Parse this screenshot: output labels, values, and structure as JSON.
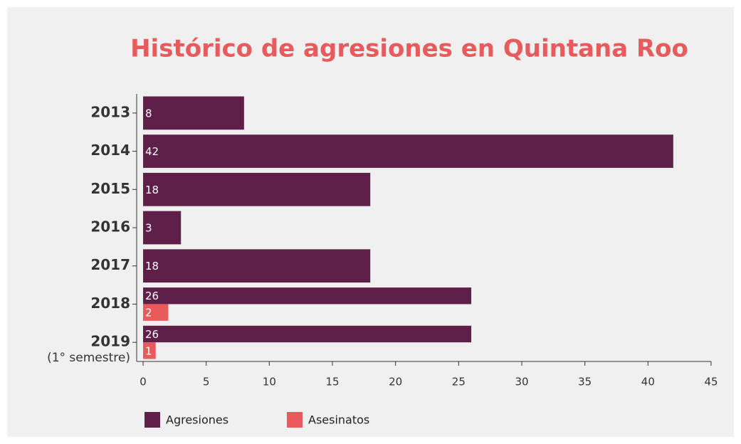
{
  "chart_data": {
    "type": "bar",
    "orientation": "horizontal",
    "title": "Histórico de agresiones en Quintana Roo",
    "categories": [
      "2013",
      "2014",
      "2015",
      "2016",
      "2017",
      "2018",
      "2019"
    ],
    "category_notes": [
      null,
      null,
      null,
      null,
      null,
      null,
      "(1° semestre)"
    ],
    "series": [
      {
        "name": "Agresiones",
        "color": "#5e2049",
        "values": [
          8,
          42,
          18,
          3,
          18,
          26,
          26
        ]
      },
      {
        "name": "Asesinatos",
        "color": "#e85a5c",
        "values": [
          null,
          null,
          null,
          null,
          null,
          2,
          1
        ]
      }
    ],
    "xlim": [
      0,
      45
    ],
    "xticks": [
      0,
      5,
      10,
      15,
      20,
      25,
      30,
      35,
      40,
      45
    ],
    "legend": "bottom-left"
  }
}
